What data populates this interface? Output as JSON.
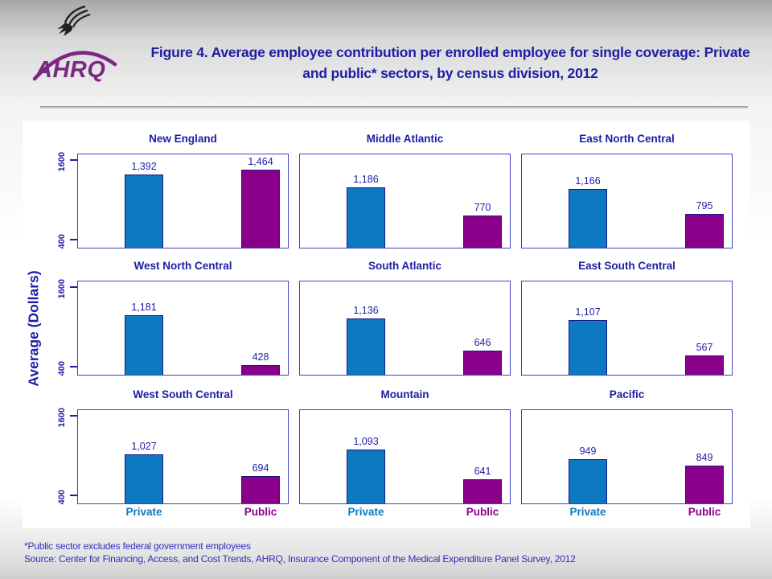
{
  "header": {
    "title": "Figure 4. Average employee contribution per enrolled employee for single coverage: Private and public* sectors, by census division, 2012",
    "logo": {
      "org": "AHRQ",
      "eagle_icon": "hhs-eagle-icon",
      "brand_color": "#7b2882"
    }
  },
  "colors": {
    "navy_text": "#1d1da4",
    "private_bar": "#0d79c1",
    "public_bar": "#8b008b",
    "panel_border": "#4040c4",
    "footnote_text": "#2e2ec0"
  },
  "chart_data": {
    "type": "bar",
    "layout": "3x3-small-multiples",
    "title": "Figure 4. Average employee contribution per enrolled employee for single coverage: Private and public* sectors, by census division, 2012",
    "ylabel": "Average (Dollars)",
    "ylim": [
      280,
      1690
    ],
    "yticks": [
      400,
      1600
    ],
    "grid": false,
    "categories": [
      "Private",
      "Public"
    ],
    "series_colors": [
      "#0d79c1",
      "#8b008b"
    ],
    "panels": [
      {
        "title": "New England",
        "values": [
          1392,
          1464
        ]
      },
      {
        "title": "Middle Atlantic",
        "values": [
          1186,
          770
        ]
      },
      {
        "title": "East North Central",
        "values": [
          1166,
          795
        ]
      },
      {
        "title": "West North Central",
        "values": [
          1181,
          428
        ]
      },
      {
        "title": "South Atlantic",
        "values": [
          1136,
          646
        ]
      },
      {
        "title": "East South Central",
        "values": [
          1107,
          567
        ]
      },
      {
        "title": "West South Central",
        "values": [
          1027,
          694
        ]
      },
      {
        "title": "Mountain",
        "values": [
          1093,
          641
        ]
      },
      {
        "title": "Pacific",
        "values": [
          949,
          849
        ]
      }
    ]
  },
  "footnotes": {
    "note": "*Public sector excludes federal government employees",
    "source": "Source: Center for Financing, Access, and Cost Trends, AHRQ, Insurance Component of the Medical Expenditure Panel Survey, 2012"
  }
}
